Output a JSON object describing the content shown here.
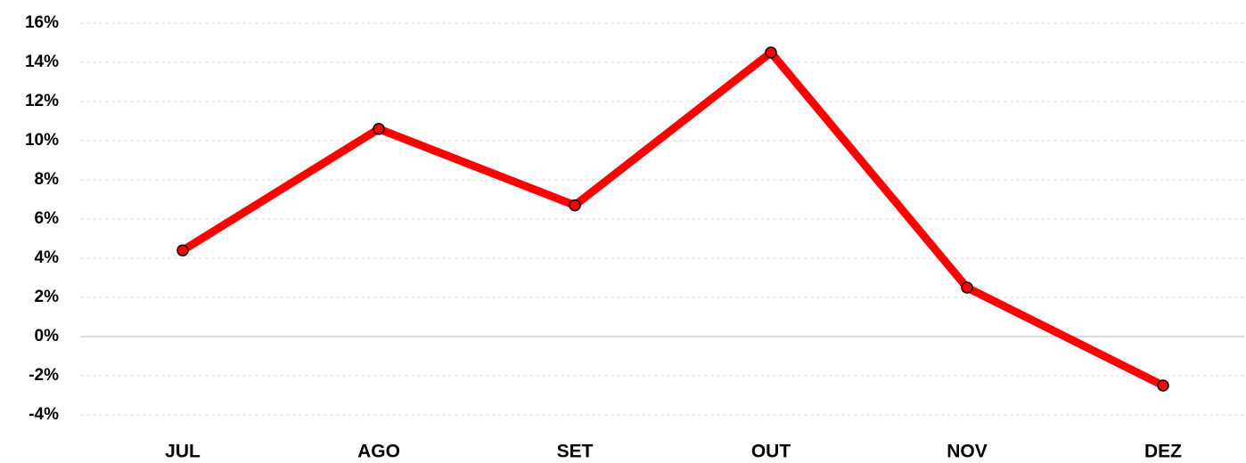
{
  "chart_data": {
    "type": "line",
    "categories": [
      "JUL",
      "AGO",
      "SET",
      "OUT",
      "NOV",
      "DEZ"
    ],
    "series": [
      {
        "color": "#ff0000",
        "values": [
          4.4,
          10.6,
          6.7,
          14.5,
          2.5,
          -2.5
        ]
      }
    ],
    "ylim": [
      -4,
      16
    ],
    "yticks": [
      {
        "value": -4,
        "label": "-4%"
      },
      {
        "value": -2,
        "label": "-2%"
      },
      {
        "value": 0,
        "label": "0%"
      },
      {
        "value": 2,
        "label": "2%"
      },
      {
        "value": 4,
        "label": "4%"
      },
      {
        "value": 6,
        "label": "6%"
      },
      {
        "value": 8,
        "label": "8%"
      },
      {
        "value": 10,
        "label": "10%"
      },
      {
        "value": 12,
        "label": "12%"
      },
      {
        "value": 14,
        "label": "14%"
      },
      {
        "value": 16,
        "label": "16%"
      }
    ],
    "grid": true
  }
}
